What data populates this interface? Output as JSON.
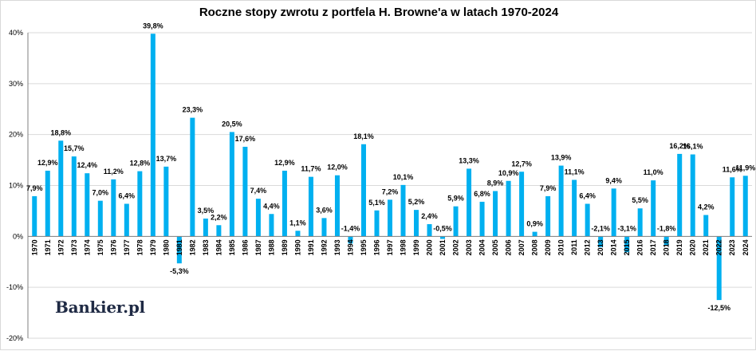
{
  "colors": {
    "bar": "#00b0f0",
    "grid": "#d9d9d9",
    "axis": "#7f7f7f",
    "brand": "#1f2a44"
  },
  "brand": {
    "logo_text": "Bankier.pl"
  },
  "chart_data": {
    "type": "bar",
    "title": "Roczne stopy zwrotu z portfela H. Browne'a w latach 1970-2024",
    "xlabel": "",
    "ylabel": "",
    "ylim": [
      -20,
      40
    ],
    "yticks": [
      -20,
      -10,
      0,
      10,
      20,
      30,
      40
    ],
    "ytick_labels": [
      "-20%",
      "-10%",
      "0%",
      "10%",
      "20%",
      "30%",
      "40%"
    ],
    "grid": true,
    "legend": "none",
    "categories": [
      "1970",
      "1971",
      "1972",
      "1973",
      "1974",
      "1975",
      "1976",
      "1977",
      "1978",
      "1979",
      "1980",
      "1981",
      "1982",
      "1983",
      "1984",
      "1985",
      "1986",
      "1987",
      "1988",
      "1989",
      "1990",
      "1991",
      "1992",
      "1993",
      "1994",
      "1995",
      "1996",
      "1997",
      "1998",
      "1999",
      "2000",
      "2001",
      "2002",
      "2003",
      "2004",
      "2005",
      "2006",
      "2007",
      "2008",
      "2009",
      "2010",
      "2011",
      "2012",
      "2013",
      "2014",
      "2015",
      "2016",
      "2017",
      "2018",
      "2019",
      "2020",
      "2021",
      "2022",
      "2023",
      "2024"
    ],
    "values": [
      7.9,
      12.9,
      18.8,
      15.7,
      12.4,
      7.0,
      11.2,
      6.4,
      12.8,
      39.8,
      13.7,
      -5.3,
      23.3,
      3.5,
      2.2,
      20.5,
      17.6,
      7.4,
      4.4,
      12.9,
      1.1,
      11.7,
      3.6,
      12.0,
      -1.4,
      18.1,
      5.1,
      7.2,
      10.1,
      5.2,
      2.4,
      -0.5,
      5.9,
      13.3,
      6.8,
      8.9,
      10.9,
      12.7,
      0.9,
      7.9,
      13.9,
      11.1,
      6.4,
      -2.1,
      9.4,
      -3.1,
      5.5,
      11.0,
      -1.8,
      16.2,
      16.1,
      4.2,
      -12.5,
      11.6,
      11.9
    ],
    "value_labels": {
      "1970": "7,9%",
      "1971": "12,9%",
      "1972": "18,8%",
      "1973": "15,7%",
      "1974": "12,4%",
      "1975": "7,0%",
      "1976": "11,2%",
      "1977": "6,4%",
      "1978": "12,8%",
      "1979": "39,8%",
      "1980": "13,7%",
      "1981": "-5,3%",
      "1982": "23,3%",
      "1983": "3,5%",
      "1984": "2,2%",
      "1985": "20,5%",
      "1986": "17,6%",
      "1987": "7,4%",
      "1988": "4,4%",
      "1989": "12,9%",
      "1990": "1,1%",
      "1991": "11,7%",
      "1992": "3,6%",
      "1993": "12,0%",
      "1994": "-1,4%",
      "1995": "18,1%",
      "1996": "5,1%",
      "1997": "7,2%",
      "1998": "10,1%",
      "1999": "5,2%",
      "2000": "2,4%",
      "2001": "-0,5%",
      "2002": "5,9%",
      "2003": "13,3%",
      "2004": "6,8%",
      "2005": "8,9%",
      "2006": "10,9%",
      "2007": "12,7%",
      "2008": "0,9%",
      "2009": "7,9%",
      "2010": "13,9%",
      "2011": "11,1%",
      "2012": "6,4%",
      "2013": "-2,1%",
      "2014": "9,4%",
      "2015": "-3,1%",
      "2016": "5,5%",
      "2017": "11,0%",
      "2018": "-1,8%",
      "2019": "16,2%",
      "2020": "16,1%",
      "2021": "4,2%",
      "2022": "-12,5%",
      "2023": "11,6%",
      "2024": "11,9%"
    }
  }
}
